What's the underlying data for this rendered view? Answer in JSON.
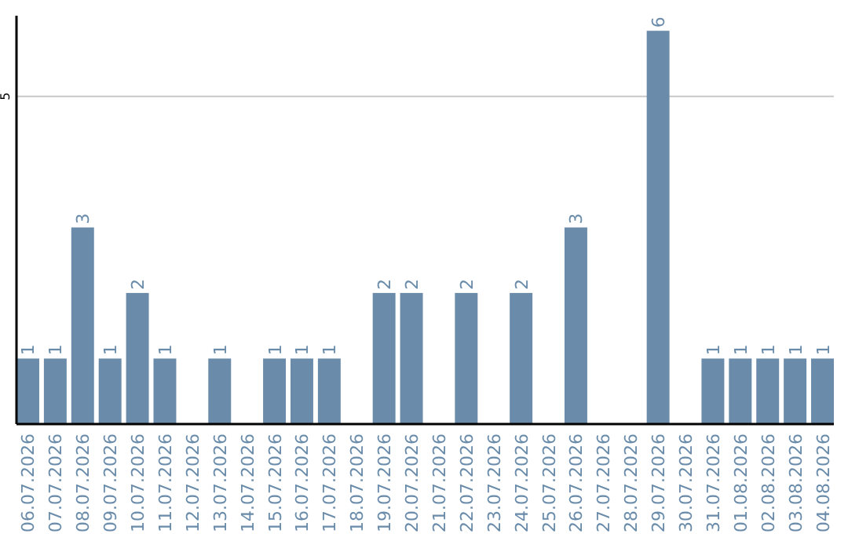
{
  "chart_data": {
    "type": "bar",
    "categories": [
      "06.07.2026",
      "07.07.2026",
      "08.07.2026",
      "09.07.2026",
      "10.07.2026",
      "11.07.2026",
      "12.07.2026",
      "13.07.2026",
      "14.07.2026",
      "15.07.2026",
      "16.07.2026",
      "17.07.2026",
      "18.07.2026",
      "19.07.2026",
      "20.07.2026",
      "21.07.2026",
      "22.07.2026",
      "23.07.2026",
      "24.07.2026",
      "25.07.2026",
      "26.07.2026",
      "27.07.2026",
      "28.07.2026",
      "29.07.2026",
      "30.07.2026",
      "31.07.2026",
      "01.08.2026",
      "02.08.2026",
      "03.08.2026",
      "04.08.2026"
    ],
    "values": [
      1,
      1,
      3,
      1,
      2,
      1,
      0,
      1,
      0,
      1,
      1,
      1,
      0,
      2,
      2,
      0,
      2,
      0,
      2,
      0,
      3,
      0,
      0,
      6,
      0,
      1,
      1,
      1,
      1,
      1
    ],
    "value_labels": [
      "1",
      "1",
      "3",
      "1",
      "2",
      "1",
      null,
      "1",
      null,
      "1",
      "1",
      "1",
      null,
      "2",
      "2",
      null,
      "2",
      null,
      "2",
      null,
      "3",
      null,
      null,
      "6",
      null,
      "1",
      "1",
      "1",
      "1",
      "1"
    ],
    "color": "#6a8caa",
    "ylim": [
      0,
      6.23
    ],
    "yticks": [
      5
    ],
    "grid": "y"
  }
}
